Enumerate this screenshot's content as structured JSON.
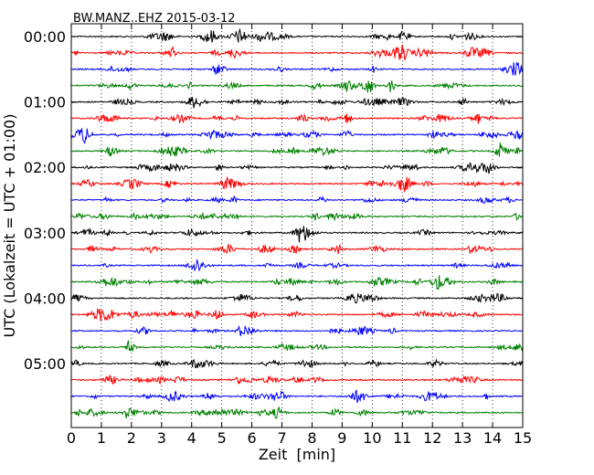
{
  "chart_data": {
    "type": "line",
    "title": "BW.MANZ..EHZ 2015-03-12",
    "xlabel": "Zeit  [min]",
    "ylabel": "UTC (Lokalzeit = UTC + 01:00)",
    "xlim": [
      0,
      15
    ],
    "x_ticks": [
      0,
      1,
      2,
      3,
      4,
      5,
      6,
      7,
      8,
      9,
      10,
      11,
      12,
      13,
      14,
      15
    ],
    "x_tick_labels": [
      "0",
      "1",
      "2",
      "3",
      "4",
      "5",
      "6",
      "7",
      "8",
      "9",
      "10",
      "11",
      "12",
      "13",
      "14",
      "15"
    ],
    "y_tick_labels": [
      "00:00",
      "01:00",
      "02:00",
      "03:00",
      "04:00",
      "05:00"
    ],
    "grid": "vertical dotted at each minute",
    "trace_interval_min": 15,
    "color_cycle": [
      "#000000",
      "#ff0000",
      "#0000ff",
      "#008000"
    ],
    "traces": [
      {
        "start": "00:00",
        "color": "#000000"
      },
      {
        "start": "00:15",
        "color": "#ff0000"
      },
      {
        "start": "00:30",
        "color": "#0000ff"
      },
      {
        "start": "00:45",
        "color": "#008000"
      },
      {
        "start": "01:00",
        "color": "#000000"
      },
      {
        "start": "01:15",
        "color": "#ff0000"
      },
      {
        "start": "01:30",
        "color": "#0000ff"
      },
      {
        "start": "01:45",
        "color": "#008000"
      },
      {
        "start": "02:00",
        "color": "#000000"
      },
      {
        "start": "02:15",
        "color": "#ff0000"
      },
      {
        "start": "02:30",
        "color": "#0000ff"
      },
      {
        "start": "02:45",
        "color": "#008000"
      },
      {
        "start": "03:00",
        "color": "#000000"
      },
      {
        "start": "03:15",
        "color": "#ff0000"
      },
      {
        "start": "03:30",
        "color": "#0000ff"
      },
      {
        "start": "03:45",
        "color": "#008000"
      },
      {
        "start": "04:00",
        "color": "#000000"
      },
      {
        "start": "04:15",
        "color": "#ff0000"
      },
      {
        "start": "04:30",
        "color": "#0000ff"
      },
      {
        "start": "04:45",
        "color": "#008000"
      },
      {
        "start": "05:00",
        "color": "#000000"
      },
      {
        "start": "05:15",
        "color": "#ff0000"
      },
      {
        "start": "05:30",
        "color": "#0000ff"
      },
      {
        "start": "05:45",
        "color": "#008000"
      }
    ]
  }
}
